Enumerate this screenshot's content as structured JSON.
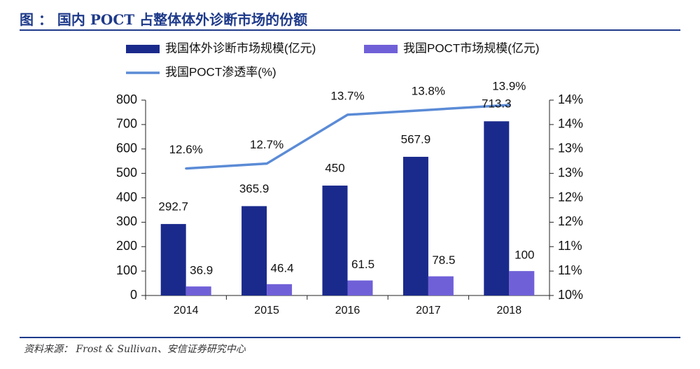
{
  "header": {
    "title": "图 ： 国内 POCT 占整体体外诊断市场的份额"
  },
  "footer": {
    "source": "资料来源： Frost & Sullivan、安信证券研究中心"
  },
  "colors": {
    "series_total": "#1a2a8c",
    "series_poct": "#7060d8",
    "series_rate": "#5b8bd6",
    "title": "#1e3a8a"
  },
  "chart_data": {
    "type": "bar",
    "title": "图 ： 国内 POCT 占整体体外诊断市场的份额",
    "categories": [
      "2014",
      "2015",
      "2016",
      "2017",
      "2018"
    ],
    "series": [
      {
        "name": "我国体外诊断市场规模(亿元)",
        "type": "bar",
        "axis": "left",
        "values": [
          292.7,
          365.9,
          450,
          567.9,
          713.3
        ],
        "labels": [
          "292.7",
          "365.9",
          "450",
          "567.9",
          "713.3"
        ]
      },
      {
        "name": "我国POCT市场规模(亿元)",
        "type": "bar",
        "axis": "left",
        "values": [
          36.9,
          46.4,
          61.5,
          78.5,
          100
        ],
        "labels": [
          "36.9",
          "46.4",
          "61.5",
          "78.5",
          "100"
        ]
      },
      {
        "name": "我国POCT渗透率(%)",
        "type": "line",
        "axis": "right",
        "values": [
          12.6,
          12.7,
          13.7,
          13.8,
          13.9
        ],
        "labels": [
          "12.6%",
          "12.7%",
          "13.7%",
          "13.8%",
          "13.9%"
        ]
      }
    ],
    "y_left": {
      "ylim": [
        0,
        800
      ],
      "ticks": [
        0,
        100,
        200,
        300,
        400,
        500,
        600,
        700,
        800
      ],
      "tick_labels": [
        "0",
        "100",
        "200",
        "300",
        "400",
        "500",
        "600",
        "700",
        "800"
      ]
    },
    "y_right": {
      "ylim": [
        10,
        14
      ],
      "ticks": [
        10,
        10.5,
        11,
        11.5,
        12,
        12.5,
        13,
        13.5,
        14
      ],
      "tick_labels": [
        "10%",
        "11%",
        "11%",
        "12%",
        "12%",
        "13%",
        "13%",
        "14%",
        "14%"
      ]
    },
    "legend": [
      {
        "name": "我国体外诊断市场规模(亿元)",
        "kind": "bar"
      },
      {
        "name": "我国POCT市场规模(亿元)",
        "kind": "bar"
      },
      {
        "name": "我国POCT渗透率(%)",
        "kind": "line"
      }
    ],
    "legend_position": "top",
    "grid": false
  }
}
